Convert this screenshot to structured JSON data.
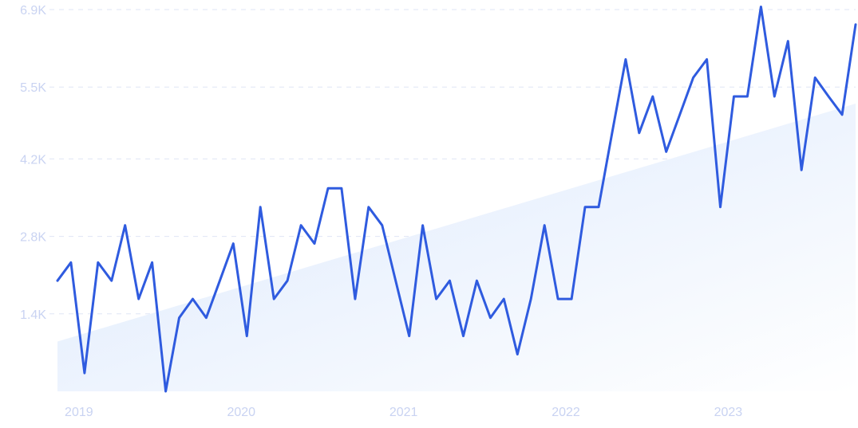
{
  "chart_data": {
    "type": "line",
    "title": "",
    "xlabel": "",
    "ylabel": "",
    "y_ticks": [
      1400,
      2800,
      4200,
      5500,
      6900
    ],
    "y_tick_labels": [
      "1.4K",
      "2.8K",
      "4.2K",
      "5.5K",
      "6.9K"
    ],
    "ylim": [
      0,
      6900
    ],
    "x_tick_labels": [
      "2019",
      "2020",
      "2021",
      "2022",
      "2023"
    ],
    "grid": true,
    "colors": {
      "line": "#2f5bdf",
      "trend_fill_top": "#dbe8fc",
      "trend_fill_bottom": "#ffffff",
      "tick_text": "#c9d3f2",
      "grid": "#dfe5f5"
    },
    "series": [
      {
        "values": [
          2000,
          2330,
          330,
          2330,
          2000,
          3000,
          1670,
          2330,
          0,
          1330,
          1670,
          1330,
          2000,
          2670,
          1000,
          3330,
          1670,
          2000,
          3000,
          2670,
          3670,
          3670,
          1670,
          3330,
          3000,
          2000,
          1000,
          3000,
          1670,
          2000,
          1000,
          2000,
          1330,
          1670,
          670,
          1670,
          3000,
          1670,
          1670,
          3330,
          3330,
          4670,
          6000,
          4670,
          5330,
          4330,
          5000,
          5670,
          6000,
          3330,
          5330,
          5330,
          6950,
          5330,
          6330,
          4000,
          5670,
          5330,
          5000,
          6630
        ]
      }
    ],
    "trend": {
      "start": 900,
      "end": 5200
    }
  }
}
